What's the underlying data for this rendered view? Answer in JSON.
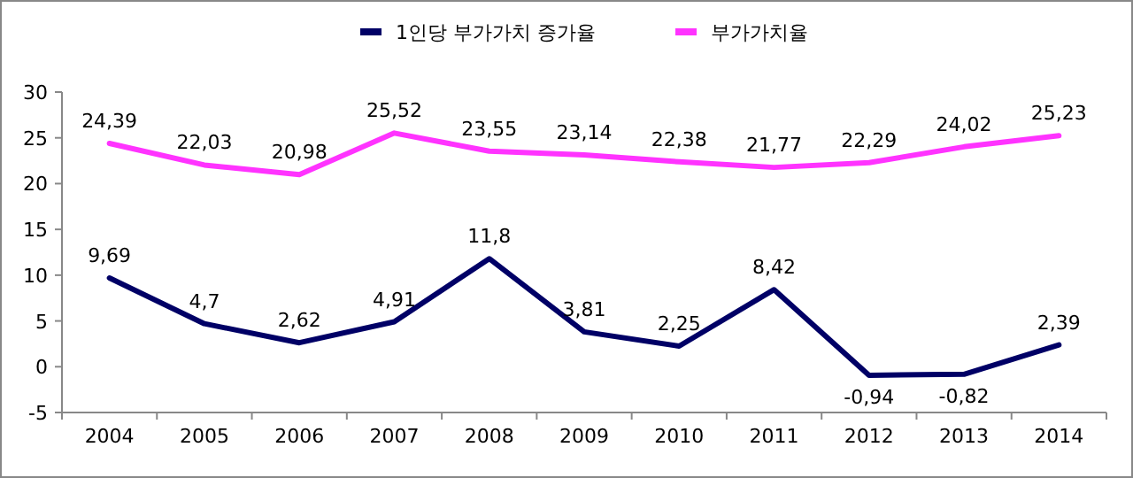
{
  "chart_data": {
    "type": "line",
    "categories": [
      "2004",
      "2005",
      "2006",
      "2007",
      "2008",
      "2009",
      "2010",
      "2011",
      "2012",
      "2013",
      "2014"
    ],
    "series": [
      {
        "name": "1인당 부가가치 증가율",
        "color": "#000066",
        "values": [
          9.69,
          4.7,
          2.62,
          4.91,
          11.8,
          3.81,
          2.25,
          8.42,
          -0.94,
          -0.82,
          2.39
        ],
        "value_labels": [
          "9,69",
          "4,7",
          "2,62",
          "4,91",
          "11,8",
          "3,81",
          "2,25",
          "8,42",
          "-0,94",
          "-0,82",
          "2,39"
        ]
      },
      {
        "name": "부가가치율",
        "color": "#ff33ff",
        "values": [
          24.39,
          22.03,
          20.98,
          25.52,
          23.55,
          23.14,
          22.38,
          21.77,
          22.29,
          24.02,
          25.23
        ],
        "value_labels": [
          "24,39",
          "22,03",
          "20,98",
          "25,52",
          "23,55",
          "23,14",
          "22,38",
          "21,77",
          "22,29",
          "24,02",
          "25,23"
        ]
      }
    ],
    "ylim": [
      -5,
      30
    ],
    "yticks": [
      -5,
      0,
      5,
      10,
      15,
      20,
      25,
      30
    ],
    "legend": "top",
    "grid": false
  }
}
